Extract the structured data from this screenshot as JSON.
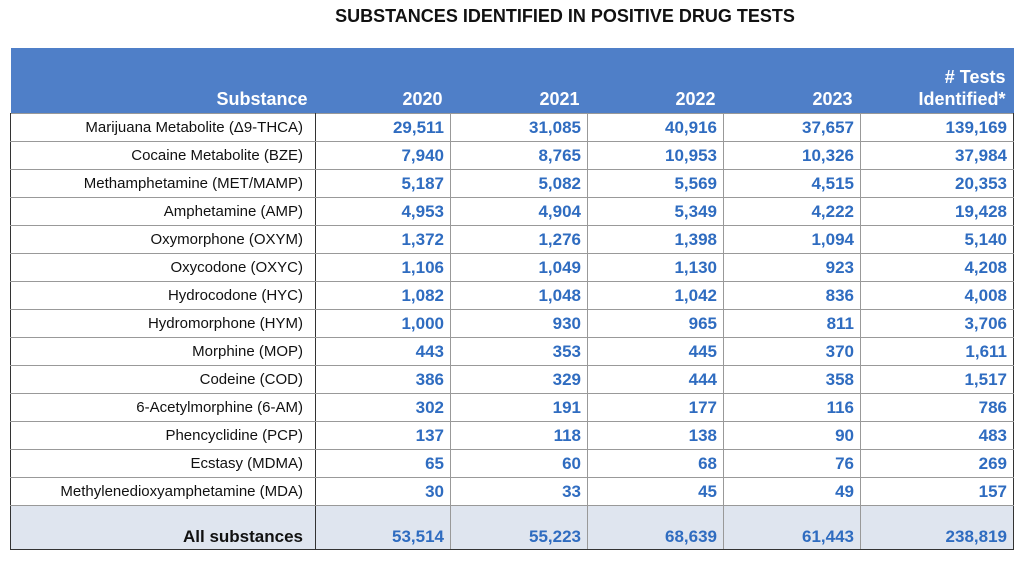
{
  "title": "SUBSTANCES IDENTIFIED IN POSITIVE DRUG TESTS",
  "table": {
    "header": [
      "Substance",
      "2020",
      "2021",
      "2022",
      "2023",
      "# Tests Identified*"
    ],
    "rows": [
      [
        "Marijuana Metabolite (Δ9-THCA)",
        "29,511",
        "31,085",
        "40,916",
        "37,657",
        "139,169"
      ],
      [
        "Cocaine Metabolite (BZE)",
        "7,940",
        "8,765",
        "10,953",
        "10,326",
        "37,984"
      ],
      [
        "Methamphetamine (MET/MAMP)",
        "5,187",
        "5,082",
        "5,569",
        "4,515",
        "20,353"
      ],
      [
        "Amphetamine (AMP)",
        "4,953",
        "4,904",
        "5,349",
        "4,222",
        "19,428"
      ],
      [
        "Oxymorphone (OXYM)",
        "1,372",
        "1,276",
        "1,398",
        "1,094",
        "5,140"
      ],
      [
        "Oxycodone (OXYC)",
        "1,106",
        "1,049",
        "1,130",
        "923",
        "4,208"
      ],
      [
        "Hydrocodone (HYC)",
        "1,082",
        "1,048",
        "1,042",
        "836",
        "4,008"
      ],
      [
        "Hydromorphone (HYM)",
        "1,000",
        "930",
        "965",
        "811",
        "3,706"
      ],
      [
        "Morphine (MOP)",
        "443",
        "353",
        "445",
        "370",
        "1,611"
      ],
      [
        "Codeine (COD)",
        "386",
        "329",
        "444",
        "358",
        "1,517"
      ],
      [
        "6-Acetylmorphine (6-AM)",
        "302",
        "191",
        "177",
        "116",
        "786"
      ],
      [
        "Phencyclidine (PCP)",
        "137",
        "118",
        "138",
        "90",
        "483"
      ],
      [
        "Ecstasy (MDMA)",
        "65",
        "60",
        "68",
        "76",
        "269"
      ],
      [
        "Methylenedioxyamphetamine (MDA)",
        "30",
        "33",
        "45",
        "49",
        "157"
      ]
    ],
    "total": [
      "All substances",
      "53,514",
      "55,223",
      "68,639",
      "61,443",
      "238,819"
    ]
  }
}
